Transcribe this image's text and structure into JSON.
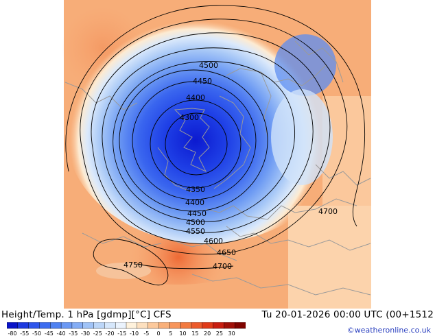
{
  "header": {
    "title": "Height/Temp. 1 hPa [gdmp][°C] CFS",
    "valid_time": "Tu 20-01-2026 00:00 UTC (00+1512",
    "credit": "©weatheronline.co.uk"
  },
  "map": {
    "contour_labels": [
      "4350",
      "4400",
      "4400",
      "4450",
      "4450",
      "4500",
      "4500",
      "4550",
      "4600",
      "4650",
      "4700",
      "4700",
      "4750",
      "4300"
    ]
  },
  "legend": {
    "ticks": [
      "-80",
      "-55",
      "-50",
      "-45",
      "-40",
      "-35",
      "-30",
      "-25",
      "-20",
      "-15",
      "-10",
      "-5",
      "0",
      "5",
      "10",
      "15",
      "20",
      "25",
      "30"
    ],
    "colors": [
      "#0a14c8",
      "#1d39e0",
      "#2e55ec",
      "#3d6cf0",
      "#4f82f2",
      "#6a98f4",
      "#84adf5",
      "#a0c3f7",
      "#bcd6f8",
      "#d6e7fb",
      "#ebf3fd",
      "#fff2dc",
      "#fde0bf",
      "#fcc99c",
      "#f9b07a",
      "#f7955b",
      "#f27a3f",
      "#ec5a2a",
      "#e03a18",
      "#c81e10",
      "#a01008",
      "#800400"
    ]
  }
}
